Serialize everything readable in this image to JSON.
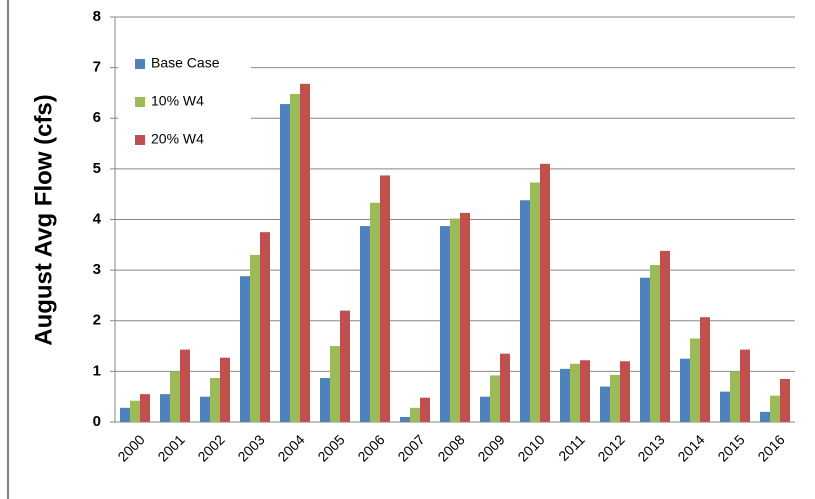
{
  "chart_data": {
    "type": "bar",
    "y_label": "August Avg Flow (cfs)",
    "categories": [
      "2000",
      "2001",
      "2002",
      "2003",
      "2004",
      "2005",
      "2006",
      "2007",
      "2008",
      "2009",
      "2010",
      "2011",
      "2012",
      "2013",
      "2014",
      "2015",
      "2016"
    ],
    "series": [
      {
        "name": "Base Case",
        "color": "#4f81bd",
        "values": [
          0.28,
          0.55,
          0.5,
          2.88,
          6.28,
          0.87,
          3.87,
          0.1,
          3.87,
          0.5,
          4.38,
          1.05,
          0.7,
          2.85,
          1.25,
          0.6,
          0.2
        ]
      },
      {
        "name": "10% W4",
        "color": "#9bbb59",
        "values": [
          0.42,
          1.0,
          0.87,
          3.3,
          6.48,
          1.5,
          4.33,
          0.28,
          4.02,
          0.92,
          4.73,
          1.15,
          0.93,
          3.1,
          1.65,
          1.0,
          0.52
        ]
      },
      {
        "name": "20% W4",
        "color": "#c0504d",
        "values": [
          0.55,
          1.43,
          1.27,
          3.75,
          6.68,
          2.2,
          4.87,
          0.48,
          4.13,
          1.35,
          5.1,
          1.22,
          1.2,
          3.38,
          2.07,
          1.43,
          0.85
        ]
      }
    ],
    "ylim": [
      0,
      8
    ],
    "yticks": [
      0,
      1,
      2,
      3,
      4,
      5,
      6,
      7,
      8
    ],
    "grid": true,
    "legend": "upper-left"
  }
}
